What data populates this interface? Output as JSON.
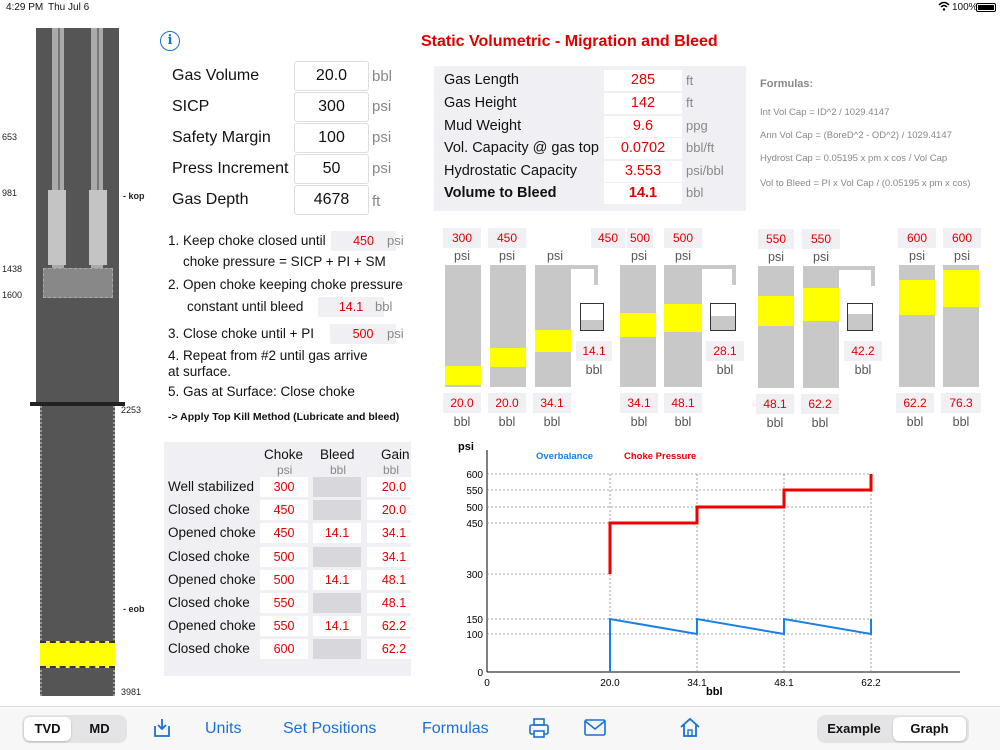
{
  "status": {
    "time": "4:29 PM",
    "date": "Thu Jul 6",
    "battery": "100%"
  },
  "title": "Static Volumetric - Migration and Bleed",
  "well": {
    "depths": [
      "653",
      "981",
      "1438",
      "1600",
      "2253",
      "3981"
    ],
    "markers": [
      "- kop",
      "- eob"
    ]
  },
  "inputs": [
    {
      "label": "Gas Volume",
      "value": "20.0",
      "unit": "bbl"
    },
    {
      "label": "SICP",
      "value": "300",
      "unit": "psi"
    },
    {
      "label": "Safety Margin",
      "value": "100",
      "unit": "psi"
    },
    {
      "label": "Press Increment",
      "value": "50",
      "unit": "psi"
    },
    {
      "label": "Gas Depth",
      "value": "4678",
      "unit": "ft"
    }
  ],
  "steps": {
    "s1a": "1. Keep choke closed until",
    "s1v": "450",
    "s1u": "psi",
    "s1b": "choke pressure = SICP + PI + SM",
    "s2a": "2. Open choke keeping choke pressure",
    "s2b": "constant until bleed",
    "s2v": "14.1",
    "s2u": "bbl",
    "s3a": "3. Close choke until + PI",
    "s3v": "500",
    "s3u": "psi",
    "s4a": "4. Repeat from #2 until gas arrive",
    "s4b": "at surface.",
    "s5": "5. Gas at Surface: Close choke",
    "kill": "-> Apply Top Kill Method (Lubricate and bleed)"
  },
  "gas": [
    {
      "label": "Gas Length",
      "value": "285",
      "unit": "ft"
    },
    {
      "label": "Gas Height",
      "value": "142",
      "unit": "ft"
    },
    {
      "label": "Mud Weight",
      "value": "9.6",
      "unit": "ppg"
    },
    {
      "label": "Vol. Capacity @ gas top",
      "value": "0.0702",
      "unit": "bbl/ft"
    },
    {
      "label": "Hydrostatic Capacity",
      "value": "3.553",
      "unit": "psi/bbl"
    },
    {
      "label": "Volume to Bleed",
      "value": "14.1",
      "unit": "bbl"
    }
  ],
  "formulas": {
    "title": "Formulas:",
    "f1": "Int Vol Cap = ID^2 / 1029.4147",
    "f2": "Ann Vol Cap = (BoreD^2 - OD^2) / 1029.4147",
    "f3": "Hydrost Cap = 0.05195 x pm x cos / Vol Cap",
    "f4": "Vol to Bleed = PI x Vol Cap / (0.05195 x pm x cos)"
  },
  "summary": {
    "headers": [
      "Choke",
      "Bleed",
      "Gain"
    ],
    "units": [
      "psi",
      "bbl",
      "bbl"
    ],
    "rows": [
      {
        "label": "Well stabilized",
        "choke": "300",
        "bleed": "",
        "gain": "20.0"
      },
      {
        "label": "Closed choke",
        "choke": "450",
        "bleed": "",
        "gain": "20.0"
      },
      {
        "label": "Opened choke",
        "choke": "450",
        "bleed": "14.1",
        "gain": "34.1"
      },
      {
        "label": "Closed choke",
        "choke": "500",
        "bleed": "",
        "gain": "34.1"
      },
      {
        "label": "Opened choke",
        "choke": "500",
        "bleed": "14.1",
        "gain": "48.1"
      },
      {
        "label": "Closed choke",
        "choke": "550",
        "bleed": "",
        "gain": "48.1"
      },
      {
        "label": "Opened choke",
        "choke": "550",
        "bleed": "14.1",
        "gain": "62.2"
      },
      {
        "label": "Closed choke",
        "choke": "600",
        "bleed": "",
        "gain": "62.2"
      }
    ]
  },
  "diagram": {
    "top": [
      "300",
      "450",
      "450",
      "500",
      "500",
      "550",
      "550",
      "600",
      "600"
    ],
    "psi": "psi",
    "bottom": [
      "20.0",
      "20.0",
      "34.1",
      "34.1",
      "48.1",
      "48.1",
      "62.2",
      "62.2",
      "76.3"
    ],
    "bbl": "bbl",
    "tanks": [
      "14.1",
      "28.1",
      "42.2"
    ]
  },
  "chart_data": {
    "type": "line",
    "ylabel": "psi",
    "xlabel": "bbl",
    "yticks": [
      "600",
      "550",
      "500",
      "450",
      "300",
      "150",
      "100",
      "0"
    ],
    "xticks": [
      "0",
      "20.0",
      "34.1",
      "48.1",
      "62.2"
    ],
    "series": [
      {
        "name": "Overbalance",
        "color": "#1a7fe6",
        "points": [
          [
            20.0,
            0
          ],
          [
            20.0,
            150
          ],
          [
            34.1,
            100
          ],
          [
            34.1,
            150
          ],
          [
            48.1,
            100
          ],
          [
            48.1,
            150
          ],
          [
            62.2,
            100
          ],
          [
            62.2,
            150
          ]
        ]
      },
      {
        "name": "Choke Pressure",
        "color": "#ee0000",
        "points": [
          [
            20.0,
            300
          ],
          [
            20.0,
            450
          ],
          [
            34.1,
            450
          ],
          [
            34.1,
            500
          ],
          [
            48.1,
            500
          ],
          [
            48.1,
            550
          ],
          [
            62.2,
            550
          ],
          [
            62.2,
            600
          ]
        ]
      }
    ],
    "xlim": [
      0,
      70
    ],
    "ylim": [
      0,
      620
    ]
  },
  "toolbar": {
    "tvd": "TVD",
    "md": "MD",
    "units": "Units",
    "setpos": "Set Positions",
    "formulas": "Formulas",
    "example": "Example",
    "graph": "Graph"
  }
}
